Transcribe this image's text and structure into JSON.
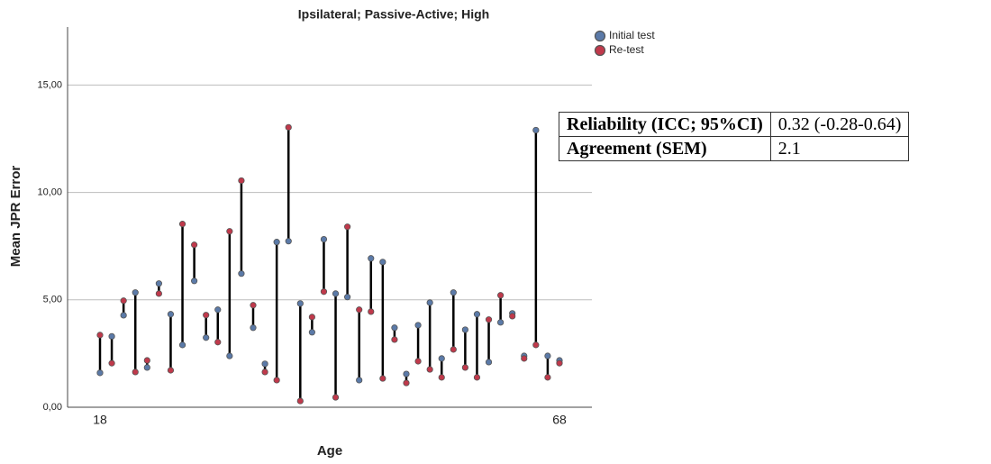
{
  "chart_data": {
    "type": "dumbbell",
    "title": "Ipsilateral; Passive-Active; High",
    "x_label": "Age",
    "y_label": "Mean JPR Error",
    "categories": [
      "18",
      null,
      null,
      null,
      null,
      null,
      null,
      null,
      null,
      null,
      null,
      null,
      null,
      null,
      null,
      null,
      null,
      null,
      null,
      null,
      null,
      null,
      null,
      null,
      null,
      null,
      null,
      null,
      null,
      null,
      null,
      null,
      null,
      null,
      null,
      null,
      null,
      null,
      null,
      "68"
    ],
    "series": [
      {
        "name": "Initial test",
        "color": "#5b7aa8",
        "values": [
          1.6,
          3.3,
          4.28,
          5.34,
          1.85,
          5.76,
          4.33,
          2.9,
          5.88,
          3.24,
          4.54,
          2.39,
          6.22,
          3.7,
          2.02,
          7.69,
          7.73,
          4.83,
          3.49,
          7.82,
          5.29,
          5.13,
          1.26,
          6.93,
          6.76,
          3.7,
          1.55,
          3.82,
          4.87,
          2.27,
          5.34,
          3.61,
          4.33,
          2.1,
          3.95,
          4.37,
          2.39,
          12.9,
          2.39,
          2.18
        ]
      },
      {
        "name": "Re-test",
        "color": "#c0394b",
        "values": [
          3.36,
          2.05,
          4.96,
          1.64,
          2.18,
          5.29,
          1.72,
          8.53,
          7.56,
          4.29,
          3.03,
          8.19,
          10.55,
          4.75,
          1.64,
          1.26,
          13.03,
          0.29,
          4.2,
          5.38,
          0.46,
          8.4,
          4.54,
          4.45,
          1.34,
          3.15,
          1.13,
          2.14,
          1.76,
          1.39,
          2.69,
          1.85,
          1.39,
          4.08,
          5.21,
          4.24,
          2.27,
          2.9,
          1.39,
          2.05
        ]
      }
    ],
    "ylim": [
      0,
      17.7
    ],
    "yticks": [
      {
        "value": 0,
        "label": "0,00"
      },
      {
        "value": 5,
        "label": "5,00"
      },
      {
        "value": 10,
        "label": "10,00"
      },
      {
        "value": 15,
        "label": "15,00"
      }
    ],
    "grid": true,
    "legend": "top-right"
  },
  "table": {
    "rows": [
      [
        "Reliability (ICC; 95%CI)",
        "0.32 (-0.28-0.64)"
      ],
      [
        "Agreement (SEM)",
        "2.1"
      ]
    ]
  }
}
